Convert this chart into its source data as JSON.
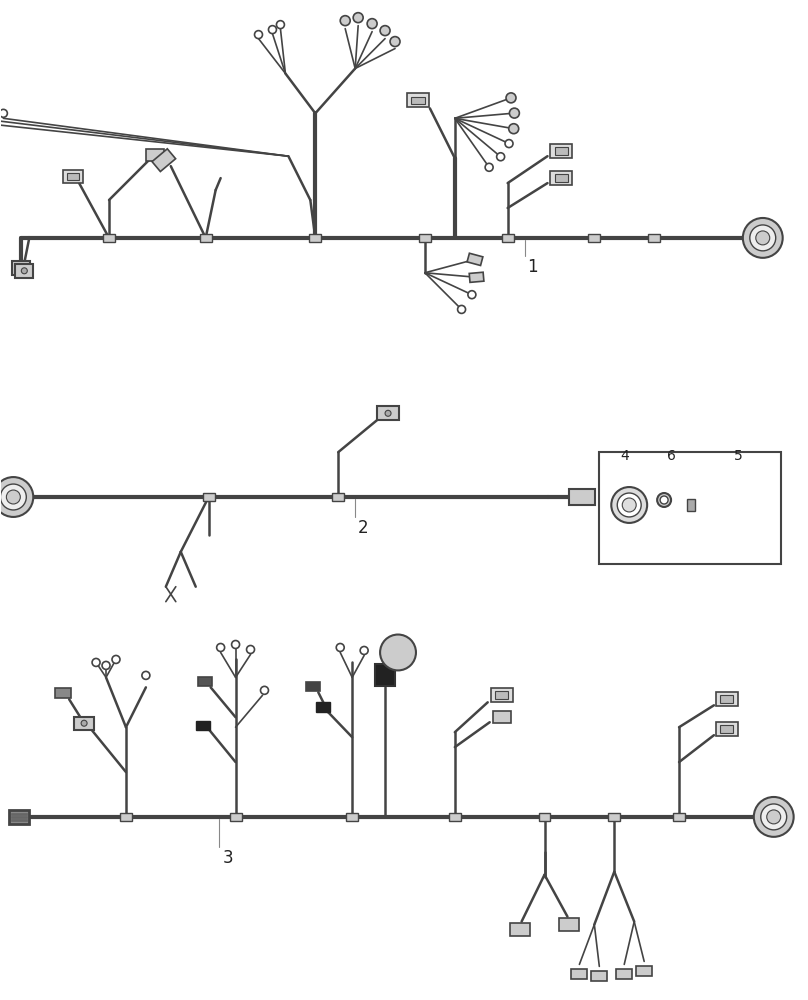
{
  "bg_color": "#ffffff",
  "lc": "#444444",
  "lc_dark": "#222222",
  "lw_trunk": 3.0,
  "lw_branch": 1.8,
  "lw_thin": 1.2,
  "label_fontsize": 12,
  "fig_width": 8.08,
  "fig_height": 10.0,
  "dpi": 100,
  "labels": {
    "1": "1",
    "2": "2",
    "3": "3",
    "4": "4",
    "5": "5",
    "6": "6"
  }
}
